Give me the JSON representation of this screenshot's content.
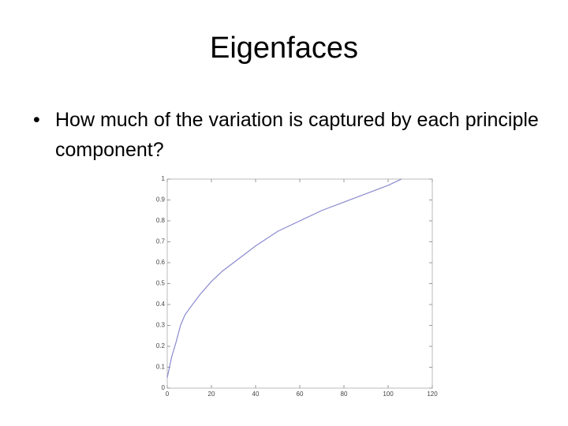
{
  "slide": {
    "title": "Eigenfaces",
    "bullets": [
      "How much of the variation is captured by each principle component?"
    ]
  },
  "chart_data": {
    "type": "line",
    "color": "#8a8ad0",
    "x": [
      0,
      1,
      2,
      4,
      6,
      8,
      10,
      15,
      20,
      25,
      30,
      40,
      50,
      60,
      70,
      80,
      90,
      100,
      106
    ],
    "values": [
      0.05,
      0.1,
      0.15,
      0.22,
      0.3,
      0.35,
      0.38,
      0.45,
      0.51,
      0.56,
      0.6,
      0.68,
      0.75,
      0.8,
      0.85,
      0.89,
      0.93,
      0.97,
      1
    ],
    "xlim": [
      0,
      120
    ],
    "xticks": [
      0,
      20,
      40,
      60,
      80,
      100,
      120
    ],
    "ylim": [
      0,
      1
    ],
    "yticks": [
      0,
      0.1,
      0.2,
      0.3,
      0.4,
      0.5,
      0.6,
      0.7,
      0.8,
      0.9,
      1
    ]
  }
}
